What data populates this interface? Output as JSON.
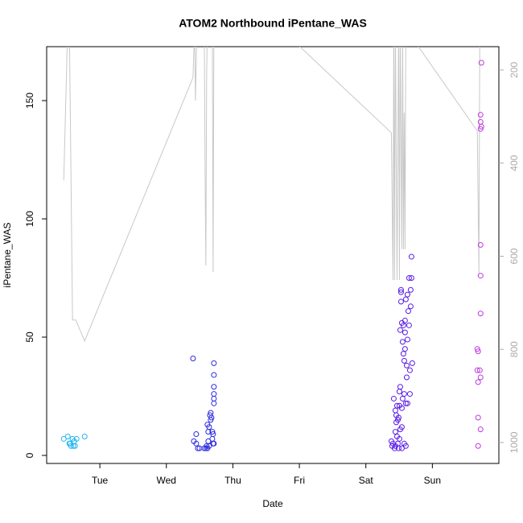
{
  "chart_data": {
    "type": "scatter",
    "title": "ATOM2 Northbound iPentane_WAS",
    "x_label": "Date",
    "y_label": "iPentane_WAS",
    "xlim": [
      0.2,
      7.0
    ],
    "ylim": [
      -3.4,
      172.8
    ],
    "y2lim": [
      1045,
      150
    ],
    "xticks": [
      {
        "value": 1,
        "label": "Tue"
      },
      {
        "value": 2,
        "label": "Wed"
      },
      {
        "value": 3,
        "label": "Thu"
      },
      {
        "value": 4,
        "label": "Fri"
      },
      {
        "value": 5,
        "label": "Sat"
      },
      {
        "value": 6,
        "label": "Sun"
      }
    ],
    "yticks": [
      0,
      50,
      100,
      150
    ],
    "y2ticks": [
      200,
      400,
      600,
      800,
      1000
    ],
    "series": [
      {
        "type": "line",
        "axis": "y2",
        "color": "#c8c8c8",
        "x": [
          0.457,
          0.517,
          0.541,
          0.589,
          0.638,
          0.771,
          2.401,
          2.425,
          2.437,
          2.461,
          2.57,
          2.582,
          2.594,
          2.606,
          2.618,
          2.691,
          2.703,
          2.715,
          3.971,
          5.384,
          5.408,
          5.42,
          5.432,
          5.444,
          5.469,
          5.493,
          5.505,
          5.517,
          5.541,
          5.553,
          5.565,
          5.577,
          5.589,
          5.601,
          5.686,
          5.722,
          6.676,
          6.7,
          6.713
        ],
        "values": [
          437,
          101,
          101,
          737,
          737,
          782,
          216,
          101,
          266,
          101,
          101,
          413,
          620,
          205,
          101,
          101,
          634,
          101,
          145,
          335,
          651,
          101,
          651,
          101,
          651,
          101,
          651,
          101,
          585,
          101,
          585,
          292,
          585,
          101,
          101,
          136,
          331,
          637,
          119
        ]
      },
      {
        "color": "#1fb5f0",
        "x": [
          0.457,
          0.517,
          0.541,
          0.565,
          0.589,
          0.614,
          0.626,
          0.65,
          0.771,
          0.553,
          0.601
        ],
        "values": [
          7,
          8,
          5,
          4,
          7,
          6,
          4,
          7,
          8,
          5,
          4
        ]
      },
      {
        "color": "#2b2be0",
        "x": [
          2.401,
          2.413,
          2.449,
          2.449,
          2.473,
          2.498,
          2.57,
          2.594,
          2.618,
          2.618,
          2.63,
          2.63,
          2.643,
          2.655,
          2.667,
          2.667,
          2.679,
          2.691,
          2.691,
          2.703,
          2.703,
          2.715,
          2.715,
          2.715,
          2.715,
          2.715,
          2.715,
          2.715,
          2.606,
          2.643
        ],
        "values": [
          41,
          6,
          9,
          5,
          3,
          3,
          3,
          3,
          3,
          13,
          10,
          6,
          12,
          17,
          18,
          15,
          16,
          10,
          7,
          5,
          9,
          39,
          34,
          29,
          26,
          24,
          22,
          5,
          4,
          4
        ]
      },
      {
        "color": "#5a1ae8",
        "x": [
          5.384,
          5.396,
          5.408,
          5.42,
          5.432,
          5.444,
          5.444,
          5.457,
          5.457,
          5.469,
          5.469,
          5.481,
          5.481,
          5.493,
          5.505,
          5.505,
          5.505,
          5.517,
          5.517,
          5.529,
          5.529,
          5.529,
          5.541,
          5.541,
          5.541,
          5.553,
          5.553,
          5.565,
          5.565,
          5.577,
          5.577,
          5.577,
          5.589,
          5.589,
          5.589,
          5.601,
          5.601,
          5.601,
          5.614,
          5.614,
          5.626,
          5.626,
          5.626,
          5.638,
          5.65,
          5.65,
          5.662,
          5.662,
          5.674,
          5.674,
          5.686,
          5.686,
          5.698,
          5.493,
          5.517,
          5.444,
          5.541
        ],
        "values": [
          6,
          4,
          5,
          24,
          3,
          19,
          10,
          17,
          14,
          8,
          21,
          15,
          5,
          3,
          27,
          21,
          7,
          53,
          29,
          69,
          70,
          65,
          56,
          20,
          12,
          48,
          24,
          55,
          43,
          40,
          26,
          5,
          57,
          52,
          45,
          66,
          22,
          4,
          38,
          33,
          68,
          49,
          22,
          61,
          75,
          55,
          26,
          36,
          70,
          63,
          84,
          75,
          39,
          16,
          11,
          4,
          3
        ]
      },
      {
        "color": "#c03ae0",
        "x": [
          6.737,
          6.725,
          6.725,
          6.737,
          6.725,
          6.725,
          6.725,
          6.725,
          6.676,
          6.688,
          6.676,
          6.713,
          6.688,
          6.725,
          6.688,
          6.725,
          6.688
        ],
        "values": [
          166,
          144,
          141,
          139,
          138,
          89,
          76,
          60,
          45,
          44,
          36,
          36,
          31,
          33,
          16,
          11,
          4
        ]
      }
    ]
  }
}
